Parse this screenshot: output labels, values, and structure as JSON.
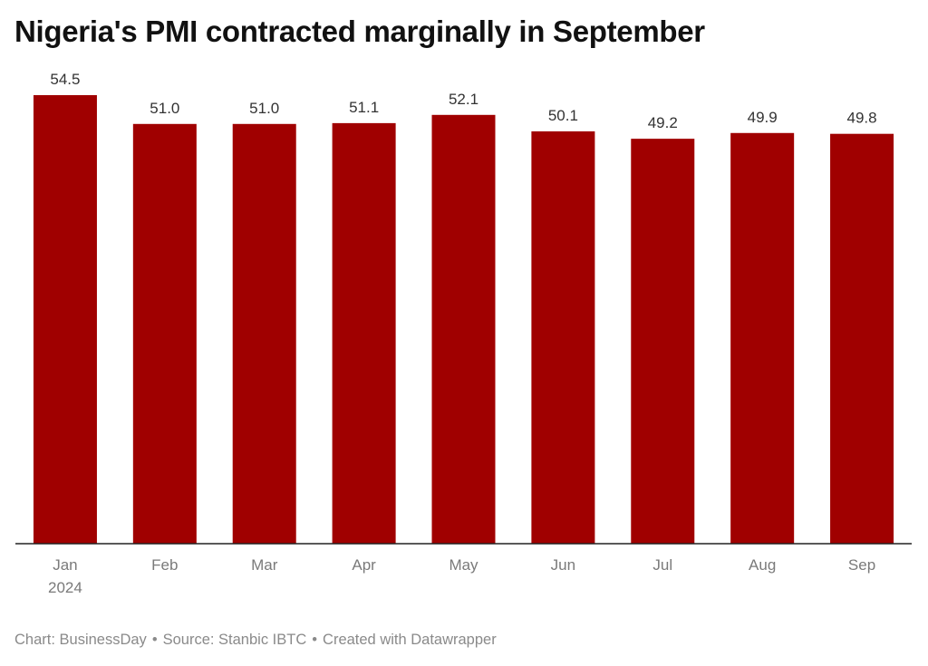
{
  "chart_data": {
    "type": "bar",
    "title": "Nigeria's PMI contracted marginally in September",
    "categories": [
      "Jan",
      "Feb",
      "Mar",
      "Apr",
      "May",
      "Jun",
      "Jul",
      "Aug",
      "Sep"
    ],
    "category_sublabels": [
      "2024",
      "",
      "",
      "",
      "",
      "",
      "",
      "",
      ""
    ],
    "values": [
      54.5,
      51.0,
      51.0,
      51.1,
      52.1,
      50.1,
      49.2,
      49.9,
      49.8
    ],
    "value_labels": [
      "54.5",
      "51.0",
      "51.0",
      "51.1",
      "52.1",
      "50.1",
      "49.2",
      "49.9",
      "49.8"
    ],
    "xlabel": "",
    "ylabel": "",
    "ylim": [
      0,
      54.5
    ],
    "grid": false,
    "bar_color": "#a00000"
  },
  "footer": {
    "chart_credit": "Chart: BusinessDay",
    "source": "Source: Stanbic IBTC",
    "created_with": "Created with Datawrapper",
    "separator": "•"
  }
}
